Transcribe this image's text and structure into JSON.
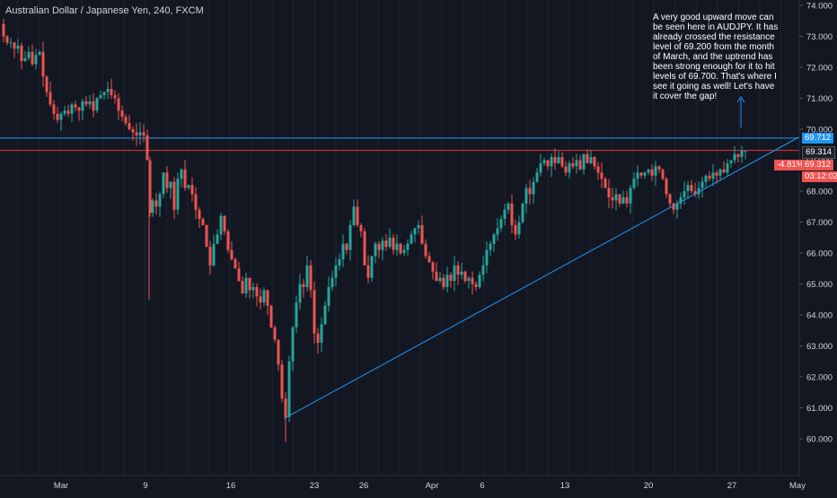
{
  "chart_title": "Australian Dollar / Japanese Yen, 240, FXCM",
  "annotation": "A very good upward move can be seen here in AUDJPY. It has already crossed the resistance level of 69.200 from the month of March, and the uptrend has been strong enough for it to hit levels of 69.700. That's where I see it going as well! Let's have it cover the gap!",
  "colors": {
    "background": "#131722",
    "grid": "#1e2433",
    "up": "#26a69a",
    "down": "#ef5350",
    "text": "#d1d4dc",
    "line_blue": "#2196f3",
    "line_red": "#e53935"
  },
  "badges": {
    "top": "69.712",
    "last": "69.314",
    "change": "-4.81%",
    "bid": "69.312",
    "countdown": "03:12:02"
  },
  "chart_data": {
    "type": "candlestick",
    "symbol": "AUDJPY",
    "timeframe": "240",
    "y_axis": {
      "ticks": [
        "60.000",
        "61.000",
        "62.000",
        "63.000",
        "64.000",
        "65.000",
        "66.000",
        "67.000",
        "68.000",
        "69.000",
        "70.000",
        "71.000",
        "72.000",
        "73.000",
        "74.000"
      ],
      "range": [
        59.5,
        74.1
      ]
    },
    "x_axis": {
      "tick_labels": [
        "Mar",
        "9",
        "16",
        "23",
        "26",
        "Apr",
        "6",
        "13",
        "20",
        "27",
        "May"
      ]
    },
    "horizontal_lines": [
      {
        "name": "resistance_top",
        "value": 69.712
      },
      {
        "name": "resistance_red",
        "value": 69.314
      }
    ],
    "trendline": {
      "from": {
        "label": "23",
        "value": 60.65
      },
      "to": {
        "label": "May",
        "value": 69.75
      }
    },
    "close_path": [
      [
        0,
        73.4
      ],
      [
        4,
        73.0
      ],
      [
        8,
        72.8
      ],
      [
        12,
        72.8
      ],
      [
        16,
        72.6
      ],
      [
        20,
        72.7
      ],
      [
        24,
        72.2
      ],
      [
        28,
        72.3
      ],
      [
        32,
        72.5
      ],
      [
        36,
        72.1
      ],
      [
        40,
        72.4
      ],
      [
        44,
        72.5
      ],
      [
        48,
        71.7
      ],
      [
        52,
        71.2
      ],
      [
        56,
        70.8
      ],
      [
        60,
        70.5
      ],
      [
        64,
        70.3
      ],
      [
        68,
        70.5
      ],
      [
        72,
        70.6
      ],
      [
        76,
        70.5
      ],
      [
        80,
        70.8
      ],
      [
        84,
        70.7
      ],
      [
        88,
        70.6
      ],
      [
        92,
        70.9
      ],
      [
        96,
        70.8
      ],
      [
        100,
        70.9
      ],
      [
        104,
        70.6
      ],
      [
        108,
        71.0
      ],
      [
        112,
        71.1
      ],
      [
        116,
        71.2
      ],
      [
        120,
        71.3
      ],
      [
        124,
        71.1
      ],
      [
        128,
        71.0
      ],
      [
        132,
        70.6
      ],
      [
        136,
        70.4
      ],
      [
        140,
        70.2
      ],
      [
        144,
        70.0
      ],
      [
        148,
        69.9
      ],
      [
        152,
        69.8
      ],
      [
        156,
        69.9
      ],
      [
        160,
        69.8
      ],
      [
        164,
        69.0
      ],
      [
        166,
        67.3
      ],
      [
        170,
        67.7
      ],
      [
        174,
        67.5
      ],
      [
        178,
        67.9
      ],
      [
        182,
        68.6
      ],
      [
        186,
        68.1
      ],
      [
        190,
        68.3
      ],
      [
        194,
        67.4
      ],
      [
        198,
        68.4
      ],
      [
        202,
        68.7
      ],
      [
        206,
        68.1
      ],
      [
        210,
        68.2
      ],
      [
        214,
        67.9
      ],
      [
        218,
        67.4
      ],
      [
        222,
        67.1
      ],
      [
        226,
        66.9
      ],
      [
        230,
        66.2
      ],
      [
        234,
        65.6
      ],
      [
        238,
        66.3
      ],
      [
        242,
        66.6
      ],
      [
        246,
        67.2
      ],
      [
        250,
        66.7
      ],
      [
        254,
        66.1
      ],
      [
        258,
        65.8
      ],
      [
        262,
        65.5
      ],
      [
        266,
        65.1
      ],
      [
        270,
        64.7
      ],
      [
        274,
        65.2
      ],
      [
        278,
        64.8
      ],
      [
        282,
        64.9
      ],
      [
        286,
        64.6
      ],
      [
        290,
        64.4
      ],
      [
        294,
        64.8
      ],
      [
        298,
        64.3
      ],
      [
        302,
        63.6
      ],
      [
        306,
        63.2
      ],
      [
        310,
        62.4
      ],
      [
        314,
        61.3
      ],
      [
        318,
        60.7
      ],
      [
        322,
        62.5
      ],
      [
        326,
        63.6
      ],
      [
        330,
        64.4
      ],
      [
        334,
        65.0
      ],
      [
        338,
        64.9
      ],
      [
        342,
        65.6
      ],
      [
        346,
        64.8
      ],
      [
        350,
        63.4
      ],
      [
        354,
        63.1
      ],
      [
        358,
        63.7
      ],
      [
        362,
        64.3
      ],
      [
        366,
        64.9
      ],
      [
        370,
        65.2
      ],
      [
        374,
        65.6
      ],
      [
        378,
        65.8
      ],
      [
        382,
        66.3
      ],
      [
        386,
        66.1
      ],
      [
        390,
        66.9
      ],
      [
        394,
        67.5
      ],
      [
        398,
        66.9
      ],
      [
        402,
        66.7
      ],
      [
        406,
        65.6
      ],
      [
        410,
        65.2
      ],
      [
        414,
        65.9
      ],
      [
        418,
        66.3
      ],
      [
        422,
        66.1
      ],
      [
        426,
        66.4
      ],
      [
        430,
        66.2
      ],
      [
        434,
        66.5
      ],
      [
        438,
        66.1
      ],
      [
        442,
        66.3
      ],
      [
        446,
        66.0
      ],
      [
        450,
        66.1
      ],
      [
        454,
        66.3
      ],
      [
        458,
        66.6
      ],
      [
        462,
        66.8
      ],
      [
        466,
        66.9
      ],
      [
        470,
        66.3
      ],
      [
        474,
        65.9
      ],
      [
        478,
        65.7
      ],
      [
        482,
        65.4
      ],
      [
        486,
        65.1
      ],
      [
        490,
        65.2
      ],
      [
        494,
        64.9
      ],
      [
        498,
        65.3
      ],
      [
        502,
        65.1
      ],
      [
        506,
        65.6
      ],
      [
        510,
        65.3
      ],
      [
        514,
        65.4
      ],
      [
        518,
        65.1
      ],
      [
        522,
        65.2
      ],
      [
        526,
        65.0
      ],
      [
        530,
        64.9
      ],
      [
        534,
        65.3
      ],
      [
        538,
        65.6
      ],
      [
        542,
        66.1
      ],
      [
        546,
        66.3
      ],
      [
        550,
        66.6
      ],
      [
        554,
        66.8
      ],
      [
        558,
        67.1
      ],
      [
        562,
        67.4
      ],
      [
        566,
        67.6
      ],
      [
        570,
        66.9
      ],
      [
        574,
        66.6
      ],
      [
        578,
        67.0
      ],
      [
        582,
        67.6
      ],
      [
        586,
        68.1
      ],
      [
        590,
        67.9
      ],
      [
        594,
        68.3
      ],
      [
        598,
        68.6
      ],
      [
        602,
        68.9
      ],
      [
        606,
        69.0
      ],
      [
        610,
        68.8
      ],
      [
        614,
        69.1
      ],
      [
        618,
        68.9
      ],
      [
        622,
        69.1
      ],
      [
        626,
        68.8
      ],
      [
        630,
        68.6
      ],
      [
        634,
        68.9
      ],
      [
        638,
        68.8
      ],
      [
        642,
        69.0
      ],
      [
        646,
        68.7
      ],
      [
        650,
        69.2
      ],
      [
        654,
        68.9
      ],
      [
        658,
        69.1
      ],
      [
        662,
        68.8
      ],
      [
        666,
        68.6
      ],
      [
        670,
        68.4
      ],
      [
        674,
        68.1
      ],
      [
        678,
        67.8
      ],
      [
        682,
        67.7
      ],
      [
        686,
        67.9
      ],
      [
        690,
        67.6
      ],
      [
        694,
        67.8
      ],
      [
        698,
        67.6
      ],
      [
        702,
        68.1
      ],
      [
        706,
        68.4
      ],
      [
        710,
        68.6
      ],
      [
        714,
        68.5
      ],
      [
        718,
        68.6
      ],
      [
        722,
        68.7
      ],
      [
        726,
        68.5
      ],
      [
        730,
        68.8
      ],
      [
        734,
        68.7
      ],
      [
        738,
        68.4
      ],
      [
        742,
        67.9
      ],
      [
        746,
        67.6
      ],
      [
        750,
        67.4
      ],
      [
        754,
        67.6
      ],
      [
        758,
        67.8
      ],
      [
        762,
        68.0
      ],
      [
        766,
        68.2
      ],
      [
        770,
        68.0
      ],
      [
        774,
        67.9
      ],
      [
        778,
        68.1
      ],
      [
        782,
        68.3
      ],
      [
        786,
        68.5
      ],
      [
        790,
        68.4
      ],
      [
        794,
        68.6
      ],
      [
        798,
        68.5
      ],
      [
        802,
        68.7
      ],
      [
        806,
        68.6
      ],
      [
        810,
        68.9
      ],
      [
        814,
        69.0
      ],
      [
        818,
        69.2
      ],
      [
        822,
        69.1
      ],
      [
        826,
        69.3
      ],
      [
        830,
        69.3
      ]
    ]
  }
}
